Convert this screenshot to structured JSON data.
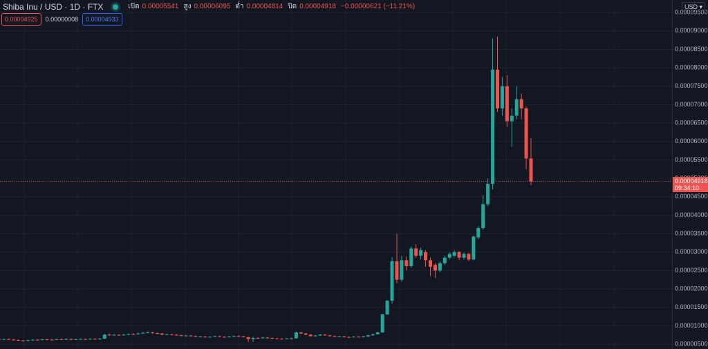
{
  "chart_data": {
    "type": "candlestick",
    "title": "Shiba Inu / USD · 1D · FTX",
    "ohlc_labels": [
      "เปิด",
      "สูง",
      "ต่ำ",
      "ปิด"
    ],
    "change": "−0.00000621 (−11.21%)",
    "quote_boxes": [
      "0.00004925",
      "0.00000008",
      "0.00004933"
    ],
    "currency": "USD",
    "countdown": "09:34:10",
    "up_color": "#26a69a",
    "down_color": "#ef5350",
    "grid": true,
    "ylim": [
      3.7e-06,
      9.84e-05
    ],
    "yticks": [
      {
        "value": 5e-06,
        "label": "0.00000500"
      },
      {
        "value": 1e-05,
        "label": "0.00001000"
      },
      {
        "value": 1.5e-05,
        "label": "0.00001500"
      },
      {
        "value": 2e-05,
        "label": "0.00002000"
      },
      {
        "value": 2.5e-05,
        "label": "0.00002500"
      },
      {
        "value": 3e-05,
        "label": "0.00003000"
      },
      {
        "value": 3.5e-05,
        "label": "0.00003500"
      },
      {
        "value": 4e-05,
        "label": "0.00004000"
      },
      {
        "value": 4.5e-05,
        "label": "0.00004500"
      },
      {
        "value": 5e-05,
        "label": "0.00005000"
      },
      {
        "value": 5.5e-05,
        "label": "0.00005500"
      },
      {
        "value": 6e-05,
        "label": "0.00006000"
      },
      {
        "value": 6.5e-05,
        "label": "0.00006500"
      },
      {
        "value": 7e-05,
        "label": "0.00007000"
      },
      {
        "value": 7.5e-05,
        "label": "0.00007500"
      },
      {
        "value": 8e-05,
        "label": "0.00008000"
      },
      {
        "value": 8.5e-05,
        "label": "0.00008500"
      },
      {
        "value": 9e-05,
        "label": "0.00009000"
      },
      {
        "value": 9.5e-05,
        "label": "0.00009500"
      }
    ],
    "open": [
      6.4e-06,
      6.3e-06,
      6.4e-06,
      6.25e-06,
      6.15e-06,
      6e-06,
      5.9e-06,
      6.1e-06,
      6.2e-06,
      6.15e-06,
      6.3e-06,
      6.25e-06,
      6.2e-06,
      6.35e-06,
      6.3e-06,
      6.4e-06,
      6.25e-06,
      6.35e-06,
      6.4e-06,
      6.3e-06,
      6.45e-06,
      6.4e-06,
      6.5e-06,
      7.6e-06,
      7.45e-06,
      7.55e-06,
      7.4e-06,
      7.6e-06,
      7.75e-06,
      7.7e-06,
      7.9e-06,
      8.1e-06,
      8.2e-06,
      8e-06,
      7.9e-06,
      7.6e-06,
      7.7e-06,
      7.55e-06,
      7.45e-06,
      7.25e-06,
      7.35e-06,
      7.2e-06,
      7e-06,
      7.05e-06,
      6.9e-06,
      7e-06,
      7.15e-06,
      7e-06,
      6.9e-06,
      7.05e-06,
      7.2e-06,
      7.1e-06,
      6.9e-06,
      6.4e-06,
      6.7e-06,
      6.6e-06,
      6.8e-06,
      6.7e-06,
      6.55e-06,
      6.5e-06,
      6.4e-06,
      6.55e-06,
      6.6e-06,
      8.2e-06,
      7.9e-06,
      7.6e-06,
      7.2e-06,
      7.35e-06,
      7.6e-06,
      7.4e-06,
      7.2e-06,
      7e-06,
      7.1e-06,
      6.95e-06,
      6.9e-06,
      7.05e-06,
      6.9e-06,
      7.1e-06,
      7.4e-06,
      7.7e-06,
      8.2e-06,
      1.31e-05,
      1.68e-05,
      2.75e-05,
      2.25e-05,
      2.78e-05,
      2.62e-05,
      3.1e-05,
      2.9e-05,
      3e-05,
      2.78e-05,
      2.65e-05,
      2.5e-05,
      2.7e-05,
      2.85e-05,
      2.9e-05,
      3e-05,
      2.85e-05,
      2.95e-05,
      2.8e-05,
      3.4e-05,
      3.65e-05,
      4.3e-05,
      4.85e-05,
      7.95e-05,
      6.9e-05,
      7.5e-05,
      6.55e-05,
      6.7e-05,
      7.15e-05,
      6.9e-05,
      5.541e-05
    ],
    "high": [
      6.6e-06,
      6.5e-06,
      6.55e-06,
      6.4e-06,
      6.3e-06,
      6.15e-06,
      6.2e-06,
      6.35e-06,
      6.4e-06,
      6.45e-06,
      6.5e-06,
      6.4e-06,
      6.5e-06,
      6.55e-06,
      6.6e-06,
      6.55e-06,
      6.5e-06,
      6.6e-06,
      6.55e-06,
      6.6e-06,
      6.65e-06,
      6.7e-06,
      7.8e-06,
      7.9e-06,
      7.75e-06,
      7.7e-06,
      7.8e-06,
      7.95e-06,
      8e-06,
      8.15e-06,
      8.3e-06,
      8.5e-06,
      8.4e-06,
      8.2e-06,
      8.05e-06,
      7.9e-06,
      7.85e-06,
      7.75e-06,
      7.6e-06,
      7.5e-06,
      7.5e-06,
      7.35e-06,
      7.25e-06,
      7.2e-06,
      7.15e-06,
      7.3e-06,
      7.3e-06,
      7.15e-06,
      7.2e-06,
      7.35e-06,
      7.4e-06,
      7.25e-06,
      7e-06,
      7e-06,
      6.9e-06,
      7e-06,
      6.95e-06,
      6.85e-06,
      6.75e-06,
      6.65e-06,
      6.7e-06,
      6.8e-06,
      8.45e-06,
      8.35e-06,
      8.05e-06,
      7.75e-06,
      7.5e-06,
      7.75e-06,
      7.75e-06,
      7.55e-06,
      7.35e-06,
      7.25e-06,
      7.25e-06,
      7.1e-06,
      7.2e-06,
      7.15e-06,
      7.25e-06,
      7.55e-06,
      7.9e-06,
      8.4e-06,
      1.33e-05,
      1.7e-05,
      2.86e-05,
      3.5e-05,
      2.9e-05,
      2.88e-05,
      3.15e-05,
      3.22e-05,
      3.12e-05,
      3.05e-05,
      2.85e-05,
      2.7e-05,
      2.75e-05,
      2.9e-05,
      3e-05,
      3.05e-05,
      3.03e-05,
      2.99e-05,
      2.98e-05,
      3.45e-05,
      3.7e-05,
      4.55e-05,
      5e-05,
      8.8e-05,
      8.85e-05,
      7.75e-05,
      7.8e-05,
      6.9e-05,
      7.5e-05,
      7.3e-05,
      6.95e-05,
      6.095e-05
    ],
    "low": [
      6.15e-06,
      6.2e-06,
      6.15e-06,
      6e-06,
      5.9e-06,
      5.7e-06,
      5.8e-06,
      6e-06,
      6.05e-06,
      6.05e-06,
      6.1e-06,
      6.05e-06,
      6.1e-06,
      6.15e-06,
      6.2e-06,
      6.1e-06,
      6.15e-06,
      6.25e-06,
      6.2e-06,
      6.2e-06,
      6.25e-06,
      6.3e-06,
      6.4e-06,
      7.3e-06,
      7.35e-06,
      7.25e-06,
      7.3e-06,
      7.45e-06,
      7.55e-06,
      7.6e-06,
      7.8e-06,
      8e-06,
      7.9e-06,
      7.75e-06,
      7.45e-06,
      7.5e-06,
      7.4e-06,
      7.3e-06,
      7.1e-06,
      7.1e-06,
      7.05e-06,
      6.9e-06,
      6.9e-06,
      6.75e-06,
      6.8e-06,
      6.9e-06,
      6.85e-06,
      6.75e-06,
      6.8e-06,
      6.95e-06,
      6.95e-06,
      6.8e-06,
      5.6e-06,
      5.6e-06,
      6.45e-06,
      6.5e-06,
      6.55e-06,
      6.4e-06,
      6.35e-06,
      6.25e-06,
      6.3e-06,
      6.4e-06,
      6.5e-06,
      7.75e-06,
      7.45e-06,
      7.05e-06,
      7.05e-06,
      7.25e-06,
      7.25e-06,
      7.05e-06,
      6.9e-06,
      6.9e-06,
      6.8e-06,
      6.75e-06,
      6.8e-06,
      6.75e-06,
      6.8e-06,
      7e-06,
      7.3e-06,
      7.6e-06,
      8.1e-06,
      1.28e-05,
      1.6e-05,
      2.15e-05,
      2.2e-05,
      2.5e-05,
      2.58e-05,
      2.85e-05,
      2.8e-05,
      2.6e-05,
      2.35e-05,
      2.3e-05,
      2.45e-05,
      2.65e-05,
      2.8e-05,
      2.85e-05,
      2.78e-05,
      2.8e-05,
      2.75e-05,
      2.78e-05,
      3.35e-05,
      3.6e-05,
      4.25e-05,
      4.7e-05,
      6.8e-05,
      6.7e-05,
      6.4e-05,
      5.85e-05,
      6.6e-05,
      6.6e-05,
      5.25e-05,
      4.814e-05
    ],
    "close": [
      6.3e-06,
      6.4e-06,
      6.25e-06,
      6.15e-06,
      6e-06,
      5.9e-06,
      6.1e-06,
      6.2e-06,
      6.15e-06,
      6.3e-06,
      6.25e-06,
      6.2e-06,
      6.35e-06,
      6.3e-06,
      6.4e-06,
      6.25e-06,
      6.35e-06,
      6.4e-06,
      6.3e-06,
      6.45e-06,
      6.4e-06,
      6.5e-06,
      7.6e-06,
      7.45e-06,
      7.55e-06,
      7.4e-06,
      7.6e-06,
      7.75e-06,
      7.7e-06,
      7.9e-06,
      8.1e-06,
      8.2e-06,
      8e-06,
      7.9e-06,
      7.6e-06,
      7.7e-06,
      7.55e-06,
      7.45e-06,
      7.25e-06,
      7.35e-06,
      7.2e-06,
      7e-06,
      7.05e-06,
      6.9e-06,
      7e-06,
      7.15e-06,
      7e-06,
      6.9e-06,
      7.05e-06,
      7.2e-06,
      7.1e-06,
      6.9e-06,
      6.4e-06,
      6.7e-06,
      6.6e-06,
      6.8e-06,
      6.7e-06,
      6.55e-06,
      6.5e-06,
      6.4e-06,
      6.55e-06,
      6.6e-06,
      8.2e-06,
      7.9e-06,
      7.6e-06,
      7.2e-06,
      7.35e-06,
      7.6e-06,
      7.4e-06,
      7.2e-06,
      7e-06,
      7.1e-06,
      6.95e-06,
      6.9e-06,
      7.05e-06,
      6.9e-06,
      7.1e-06,
      7.4e-06,
      7.7e-06,
      8.2e-06,
      1.31e-05,
      1.68e-05,
      2.75e-05,
      2.25e-05,
      2.78e-05,
      2.62e-05,
      3.1e-05,
      2.9e-05,
      3.05e-05,
      2.78e-05,
      2.6e-05,
      2.5e-05,
      2.7e-05,
      2.85e-05,
      2.95e-05,
      3e-05,
      2.85e-05,
      2.95e-05,
      2.8e-05,
      3.42e-05,
      3.65e-05,
      4.3e-05,
      4.85e-05,
      7.95e-05,
      6.9e-05,
      7.5e-05,
      6.55e-05,
      6.7e-05,
      7.15e-05,
      6.9e-05,
      5.539e-05,
      4.918e-05
    ]
  }
}
